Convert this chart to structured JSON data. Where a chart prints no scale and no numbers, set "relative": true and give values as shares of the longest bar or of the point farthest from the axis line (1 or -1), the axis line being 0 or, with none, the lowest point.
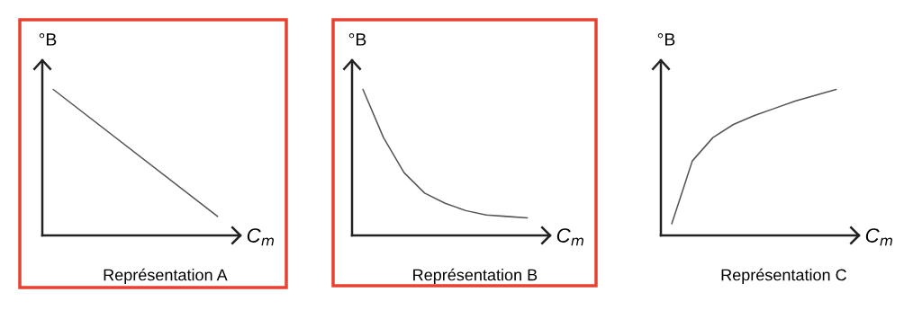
{
  "chart_data": [
    {
      "type": "line",
      "title": "Représentation A",
      "xlabel": "C$_{m}$",
      "ylabel": "°B",
      "relative": true,
      "legend": false,
      "categories": [
        null,
        null
      ],
      "color": "#555555",
      "values": [
        1,
        0.13
      ]
    },
    {
      "type": "line",
      "title": "Représentation B",
      "xlabel": "C$_{m}$",
      "ylabel": "°B",
      "relative": true,
      "legend": false,
      "categories": [
        null,
        null,
        null,
        null,
        null,
        null,
        null,
        null,
        null
      ],
      "color": "#555555",
      "values": [
        1,
        0.67,
        0.43,
        0.29,
        0.22,
        0.17,
        0.14,
        0.13,
        0.12
      ]
    },
    {
      "type": "line",
      "title": "Représentation C",
      "xlabel": "C$_{m}$",
      "ylabel": "°B",
      "relative": true,
      "legend": false,
      "categories": [
        null,
        null,
        null,
        null,
        null,
        null,
        null,
        null,
        null
      ],
      "color": "#555555",
      "values": [
        0.08,
        0.51,
        0.67,
        0.76,
        0.82,
        0.87,
        0.92,
        0.96,
        1
      ]
    }
  ]
}
